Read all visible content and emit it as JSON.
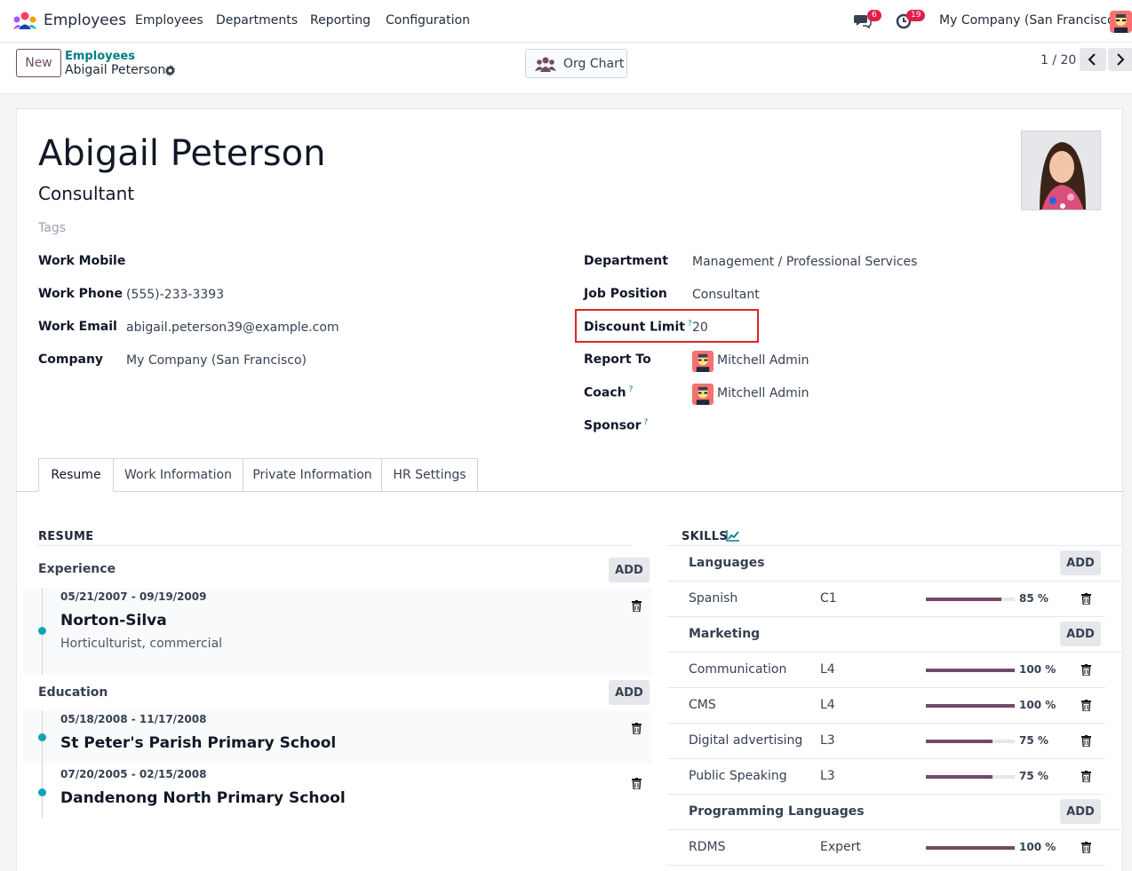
{
  "navbar": {
    "app_name": "Employees",
    "menu": [
      "Employees",
      "Departments",
      "Reporting",
      "Configuration"
    ],
    "messages_count": "6",
    "activities_count": "19",
    "company": "My Company (San Francisco)"
  },
  "control": {
    "new_label": "New",
    "breadcrumb_parent": "Employees",
    "breadcrumb_current": "Abigail Peterson",
    "org_chart_label": "Org Chart",
    "pager": "1 / 20"
  },
  "employee": {
    "name": "Abigail Peterson",
    "job_title": "Consultant",
    "tags_placeholder": "Tags",
    "work_mobile_label": "Work Mobile",
    "work_mobile": "",
    "work_phone_label": "Work Phone",
    "work_phone": "(555)-233-3393",
    "work_email_label": "Work Email",
    "work_email": "abigail.peterson39@example.com",
    "company_label": "Company",
    "company": "My Company (San Francisco)",
    "department_label": "Department",
    "department": "Management / Professional Services",
    "job_position_label": "Job Position",
    "job_position": "Consultant",
    "discount_limit_label": "Discount Limit",
    "discount_limit": "20",
    "report_to_label": "Report To",
    "report_to": "Mitchell Admin",
    "coach_label": "Coach",
    "coach": "Mitchell Admin",
    "sponsor_label": "Sponsor",
    "help_mark": "?"
  },
  "tabs": [
    "Resume",
    "Work Information",
    "Private Information",
    "HR Settings"
  ],
  "resume": {
    "title": "RESUME",
    "add_label": "ADD",
    "experience_title": "Experience",
    "education_title": "Education",
    "experience": [
      {
        "dates": "05/21/2007 - 09/19/2009",
        "name": "Norton-Silva",
        "desc": "Horticulturist, commercial"
      }
    ],
    "education": [
      {
        "dates": "05/18/2008 - 11/17/2008",
        "name": "St Peter's Parish Primary School"
      },
      {
        "dates": "07/20/2005 - 02/15/2008",
        "name": "Dandenong North Primary School"
      }
    ]
  },
  "skills": {
    "title": "SKILLS",
    "add_label": "ADD",
    "categories": [
      {
        "name": "Languages",
        "items": [
          {
            "name": "Spanish",
            "level": "C1",
            "pct": 85,
            "pct_label": "85 %"
          }
        ]
      },
      {
        "name": "Marketing",
        "items": [
          {
            "name": "Communication",
            "level": "L4",
            "pct": 100,
            "pct_label": "100 %"
          },
          {
            "name": "CMS",
            "level": "L4",
            "pct": 100,
            "pct_label": "100 %"
          },
          {
            "name": "Digital advertising",
            "level": "L3",
            "pct": 75,
            "pct_label": "75 %"
          },
          {
            "name": "Public Speaking",
            "level": "L3",
            "pct": 75,
            "pct_label": "75 %"
          }
        ]
      },
      {
        "name": "Programming Languages",
        "items": [
          {
            "name": "RDMS",
            "level": "Expert",
            "pct": 100,
            "pct_label": "100 %"
          }
        ]
      }
    ]
  },
  "colors": {
    "brand": "#714b67",
    "teal": "#017e84",
    "highlight": "#dc2626"
  }
}
